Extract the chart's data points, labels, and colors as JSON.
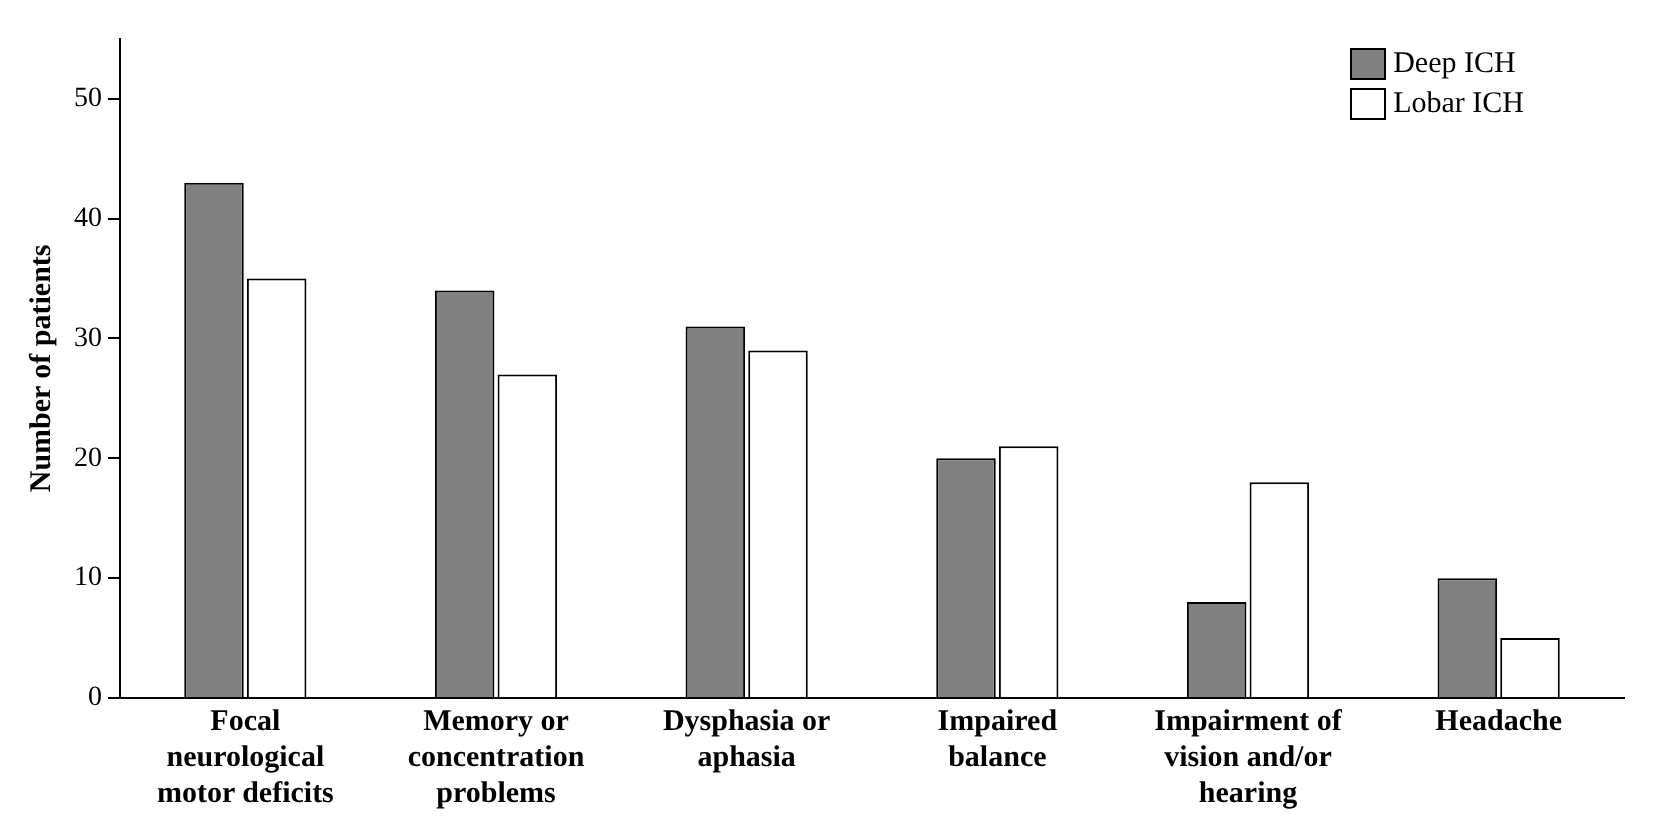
{
  "chart_data": {
    "type": "bar",
    "ylabel": "Number of patients",
    "categories": [
      "Focal neurological motor deficits",
      "Memory or concentration problems",
      "Dysphasia or aphasia",
      "Impaired balance",
      "Impairment of vision and/or hearing",
      "Headache"
    ],
    "series": [
      {
        "name": "Deep ICH",
        "color": "#808080",
        "values": [
          43,
          34,
          31,
          20,
          8,
          10
        ]
      },
      {
        "name": "Lobar ICH",
        "color": "#ffffff",
        "values": [
          35,
          27,
          29,
          21,
          18,
          5
        ]
      }
    ],
    "ylim": [
      0,
      55
    ],
    "yticks": [
      0,
      10,
      20,
      30,
      40,
      50
    ],
    "grid": false,
    "legend": "top right"
  }
}
